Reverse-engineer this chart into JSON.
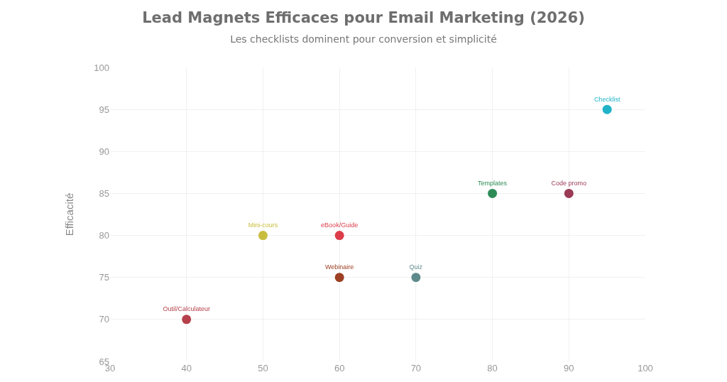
{
  "chart_data": {
    "type": "scatter",
    "title": "Lead Magnets Efficaces pour Email Marketing (2026)",
    "subtitle": "Les checklists dominent pour conversion et simplicité",
    "ylabel": "Efficacité",
    "series": [
      {
        "name": "Checklist",
        "color": "#1fb3c8",
        "x": [
          95
        ],
        "values": [
          95
        ]
      },
      {
        "name": "Templates",
        "color": "#2e8b57",
        "x": [
          80
        ],
        "values": [
          85
        ]
      },
      {
        "name": "Code promo",
        "color": "#9b3a55",
        "x": [
          90
        ],
        "values": [
          85
        ]
      },
      {
        "name": "Mini-cours",
        "color": "#c8bd3c",
        "x": [
          50
        ],
        "values": [
          80
        ]
      },
      {
        "name": "eBook/Guide",
        "color": "#dc3d4a",
        "x": [
          60
        ],
        "values": [
          80
        ]
      },
      {
        "name": "Webinaire",
        "color": "#9c4124",
        "x": [
          60
        ],
        "values": [
          75
        ]
      },
      {
        "name": "Quiz",
        "color": "#5f8a8b",
        "x": [
          70
        ],
        "values": [
          75
        ]
      },
      {
        "name": "Outil/Calculateur",
        "color": "#b5404a",
        "x": [
          40
        ],
        "values": [
          70
        ]
      }
    ],
    "xlim": [
      30,
      100
    ],
    "xticks": [
      30,
      40,
      50,
      60,
      70,
      80,
      90,
      100
    ],
    "ylim": [
      65,
      100
    ],
    "yticks": [
      65,
      70,
      75,
      80,
      85,
      90,
      95,
      100
    ],
    "grid": true,
    "marker": "circle",
    "legend": false
  }
}
